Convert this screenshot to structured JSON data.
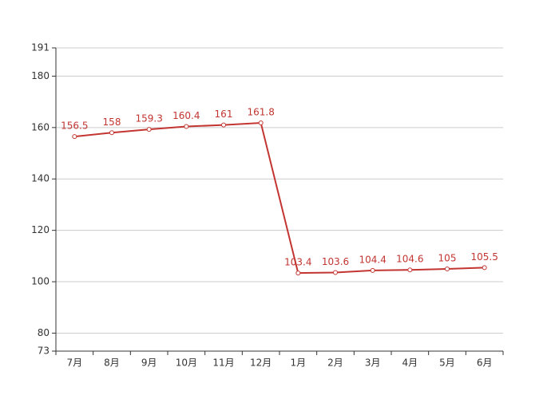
{
  "chart_data": {
    "type": "line",
    "categories": [
      "7月",
      "8月",
      "9月",
      "10月",
      "11月",
      "12月",
      "1月",
      "2月",
      "3月",
      "4月",
      "5月",
      "6月"
    ],
    "series": [
      {
        "color": "#c23531",
        "values": [
          156.5,
          158,
          159.3,
          160.4,
          161,
          161.8,
          103.4,
          103.6,
          104.4,
          104.6,
          105,
          105.5
        ]
      }
    ],
    "ylim": [
      73,
      191
    ],
    "yticks": [
      73,
      80,
      100,
      120,
      140,
      160,
      180,
      191
    ],
    "grid": true
  }
}
